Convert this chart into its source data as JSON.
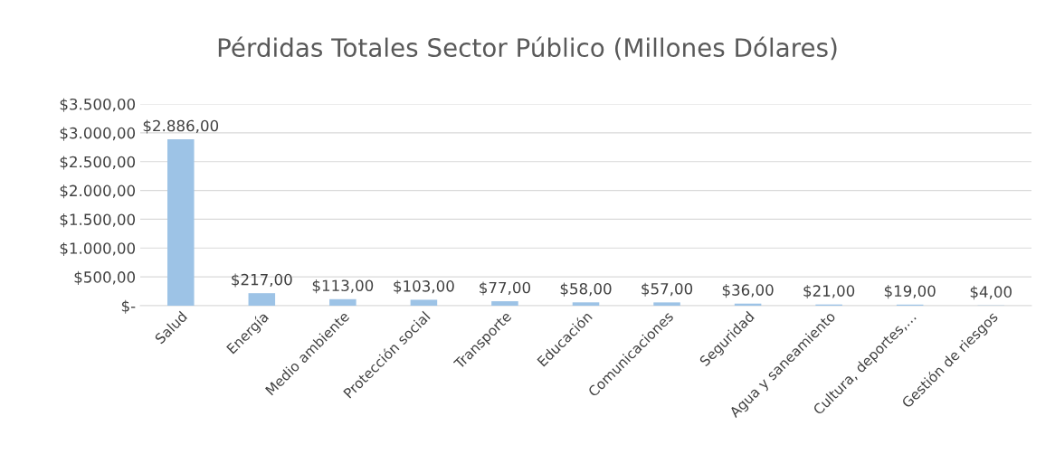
{
  "chart_data": {
    "type": "bar",
    "title": "Pérdidas Totales Sector Público (Millones Dólares)",
    "categories": [
      "Salud",
      "Energía",
      "Medio ambiente",
      "Protección social",
      "Transporte",
      "Educación",
      "Comunicaciones",
      "Seguridad",
      "Agua y saneamiento",
      "Cultura, deportes,…",
      "Gestión de riesgos"
    ],
    "values": [
      2886,
      217,
      113,
      103,
      77,
      58,
      57,
      36,
      21,
      19,
      4
    ],
    "value_labels": [
      "$2.886,00",
      "$217,00",
      "$113,00",
      "$103,00",
      "$77,00",
      "$58,00",
      "$57,00",
      "$36,00",
      "$21,00",
      "$19,00",
      "$4,00"
    ],
    "color": "#9dc3e6",
    "ylim": [
      0,
      3500
    ],
    "yticks": [
      {
        "value": 0,
        "label": "$-"
      },
      {
        "value": 500,
        "label": "$500,00"
      },
      {
        "value": 1000,
        "label": "$1.000,00"
      },
      {
        "value": 1500,
        "label": "$1.500,00"
      },
      {
        "value": 2000,
        "label": "$2.000,00"
      },
      {
        "value": 2500,
        "label": "$2.500,00"
      },
      {
        "value": 3000,
        "label": "$3.000,00"
      },
      {
        "value": 3500,
        "label": "$3.500,00"
      }
    ],
    "grid": "y"
  }
}
